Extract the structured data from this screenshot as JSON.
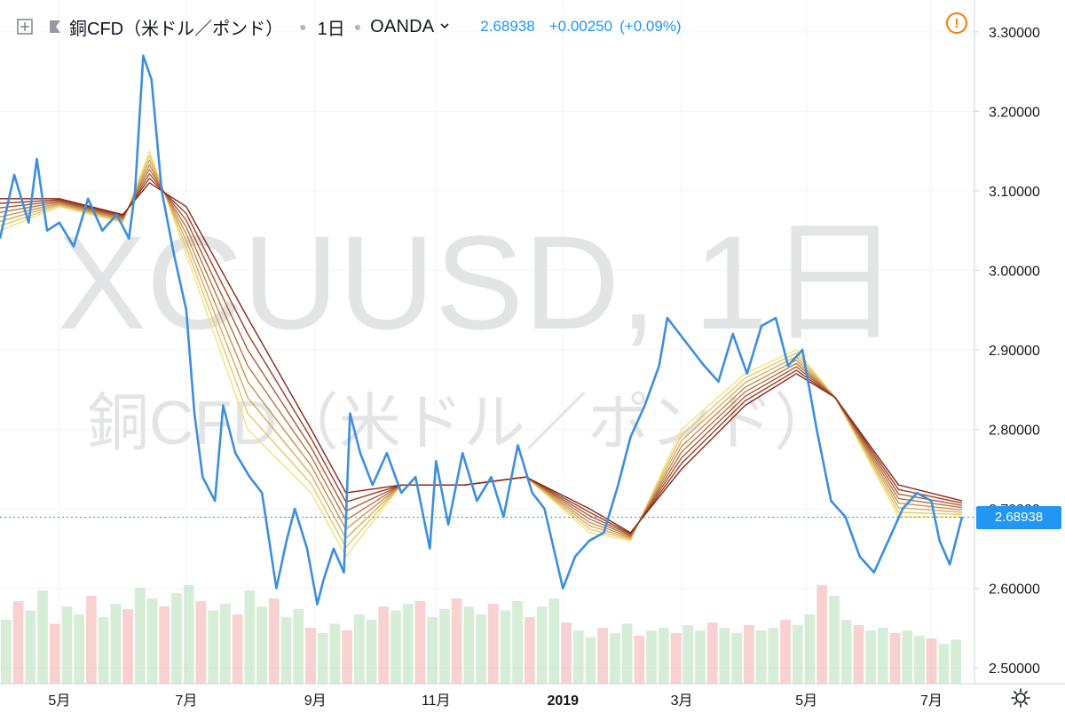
{
  "header": {
    "symbol_title": "銅CFD（米ドル／ポンド）",
    "interval": "1日",
    "exchange": "OANDA",
    "price": "2.68938",
    "change": "+0.00250",
    "change_pct": "(+0.09%)",
    "icons": [
      "expand-icon",
      "flag-icon",
      "chevron-down-icon",
      "warning-icon",
      "gear-icon"
    ]
  },
  "watermark": {
    "line1": "XCUUSD, 1日",
    "line2": "銅CFD（米ドル／ポンド）"
  },
  "price_tag": "2.68938",
  "colors": {
    "price_line": "#3d8fdc",
    "accent": "#2196f3",
    "ribbon_fast": "#f5e27a",
    "ribbon_slow": "#8a2418",
    "warning": "#f57c00"
  },
  "chart_data": {
    "type": "line",
    "title": "",
    "xlabel": "",
    "ylabel": "",
    "ylim": [
      2.48,
      3.34
    ],
    "y_ticks": [
      "3.30000",
      "3.20000",
      "3.10000",
      "3.00000",
      "2.90000",
      "2.80000",
      "2.70000",
      "2.60000",
      "2.50000"
    ],
    "y_tick_values": [
      3.3,
      3.2,
      3.1,
      3.0,
      2.9,
      2.8,
      2.7,
      2.6,
      2.5
    ],
    "x_start": "2018-04-02",
    "x_end": "2019-07-16",
    "x_ticks": [
      {
        "label": "5月",
        "date": "2018-05-01"
      },
      {
        "label": "7月",
        "date": "2018-07-02"
      },
      {
        "label": "9月",
        "date": "2018-09-03"
      },
      {
        "label": "11月",
        "date": "2018-11-01"
      },
      {
        "label": "2019",
        "date": "2019-01-02"
      },
      {
        "label": "3月",
        "date": "2019-03-01"
      },
      {
        "label": "5月",
        "date": "2019-05-01"
      },
      {
        "label": "7月",
        "date": "2019-07-01"
      }
    ],
    "current_price": 2.68938,
    "series": [
      {
        "name": "XCUUSD",
        "style": "price",
        "x": [
          "2018-04-02",
          "2018-04-09",
          "2018-04-16",
          "2018-04-20",
          "2018-04-25",
          "2018-05-01",
          "2018-05-08",
          "2018-05-15",
          "2018-05-22",
          "2018-05-29",
          "2018-06-04",
          "2018-06-07",
          "2018-06-11",
          "2018-06-15",
          "2018-06-20",
          "2018-06-26",
          "2018-07-02",
          "2018-07-06",
          "2018-07-10",
          "2018-07-16",
          "2018-07-20",
          "2018-07-26",
          "2018-08-02",
          "2018-08-08",
          "2018-08-15",
          "2018-08-20",
          "2018-08-24",
          "2018-08-30",
          "2018-09-04",
          "2018-09-07",
          "2018-09-12",
          "2018-09-17",
          "2018-09-20",
          "2018-09-25",
          "2018-10-01",
          "2018-10-08",
          "2018-10-15",
          "2018-10-22",
          "2018-10-29",
          "2018-11-01",
          "2018-11-07",
          "2018-11-14",
          "2018-11-21",
          "2018-11-28",
          "2018-12-04",
          "2018-12-11",
          "2018-12-18",
          "2018-12-24",
          "2019-01-02",
          "2019-01-08",
          "2019-01-15",
          "2019-01-22",
          "2019-01-29",
          "2019-02-04",
          "2019-02-11",
          "2019-02-18",
          "2019-02-22",
          "2019-02-28",
          "2019-03-06",
          "2019-03-12",
          "2019-03-19",
          "2019-03-26",
          "2019-04-02",
          "2019-04-09",
          "2019-04-16",
          "2019-04-22",
          "2019-04-29",
          "2019-05-06",
          "2019-05-13",
          "2019-05-20",
          "2019-05-27",
          "2019-06-03",
          "2019-06-10",
          "2019-06-17",
          "2019-06-24",
          "2019-07-01",
          "2019-07-05",
          "2019-07-10",
          "2019-07-16"
        ],
        "values": [
          3.04,
          3.12,
          3.06,
          3.14,
          3.05,
          3.06,
          3.03,
          3.09,
          3.05,
          3.07,
          3.04,
          3.1,
          3.27,
          3.24,
          3.1,
          3.02,
          2.95,
          2.82,
          2.74,
          2.71,
          2.83,
          2.77,
          2.74,
          2.72,
          2.6,
          2.66,
          2.7,
          2.65,
          2.58,
          2.61,
          2.65,
          2.62,
          2.82,
          2.77,
          2.73,
          2.77,
          2.72,
          2.74,
          2.65,
          2.76,
          2.68,
          2.77,
          2.71,
          2.74,
          2.69,
          2.78,
          2.72,
          2.7,
          2.6,
          2.64,
          2.66,
          2.67,
          2.73,
          2.79,
          2.83,
          2.88,
          2.94,
          2.92,
          2.9,
          2.88,
          2.86,
          2.92,
          2.87,
          2.93,
          2.94,
          2.88,
          2.9,
          2.8,
          2.71,
          2.69,
          2.64,
          2.62,
          2.66,
          2.7,
          2.72,
          2.71,
          2.66,
          2.63,
          2.69
        ]
      },
      {
        "name": "EMA-fast",
        "style": "ribbon-fast",
        "x": [
          "2018-04-02",
          "2018-05-01",
          "2018-06-01",
          "2018-06-14",
          "2018-07-02",
          "2018-08-01",
          "2018-09-01",
          "2018-09-18",
          "2018-10-15",
          "2018-11-15",
          "2018-12-15",
          "2019-01-15",
          "2019-02-04",
          "2019-03-01",
          "2019-04-01",
          "2019-04-26",
          "2019-05-15",
          "2019-06-15",
          "2019-07-16"
        ],
        "values": [
          3.05,
          3.08,
          3.06,
          3.15,
          3.02,
          2.8,
          2.72,
          2.64,
          2.73,
          2.73,
          2.74,
          2.67,
          2.66,
          2.8,
          2.87,
          2.9,
          2.84,
          2.69,
          2.69
        ]
      },
      {
        "name": "EMA-slow",
        "style": "ribbon-slow",
        "x": [
          "2018-04-02",
          "2018-05-01",
          "2018-06-01",
          "2018-06-14",
          "2018-07-02",
          "2018-08-01",
          "2018-09-01",
          "2018-09-18",
          "2018-10-15",
          "2018-11-15",
          "2018-12-15",
          "2019-01-15",
          "2019-02-04",
          "2019-03-01",
          "2019-04-01",
          "2019-04-26",
          "2019-05-15",
          "2019-06-15",
          "2019-07-16"
        ],
        "values": [
          3.09,
          3.09,
          3.07,
          3.11,
          3.08,
          2.94,
          2.8,
          2.72,
          2.73,
          2.73,
          2.74,
          2.7,
          2.67,
          2.75,
          2.83,
          2.87,
          2.84,
          2.73,
          2.71
        ]
      }
    ],
    "volume": {
      "name": "Volume",
      "values": [
        0.48,
        0.62,
        0.55,
        0.7,
        0.45,
        0.58,
        0.52,
        0.66,
        0.5,
        0.6,
        0.56,
        0.72,
        0.64,
        0.58,
        0.68,
        0.74,
        0.62,
        0.55,
        0.6,
        0.52,
        0.7,
        0.58,
        0.64,
        0.5,
        0.56,
        0.42,
        0.38,
        0.45,
        0.4,
        0.52,
        0.48,
        0.58,
        0.55,
        0.6,
        0.62,
        0.5,
        0.56,
        0.64,
        0.58,
        0.52,
        0.6,
        0.55,
        0.62,
        0.5,
        0.58,
        0.64,
        0.46,
        0.4,
        0.35,
        0.42,
        0.38,
        0.45,
        0.36,
        0.4,
        0.42,
        0.38,
        0.44,
        0.4,
        0.46,
        0.42,
        0.38,
        0.44,
        0.4,
        0.42,
        0.48,
        0.44,
        0.52,
        0.74,
        0.66,
        0.48,
        0.44,
        0.4,
        0.42,
        0.38,
        0.4,
        0.36,
        0.34,
        0.3,
        0.33
      ],
      "ymax": 1.0
    }
  }
}
